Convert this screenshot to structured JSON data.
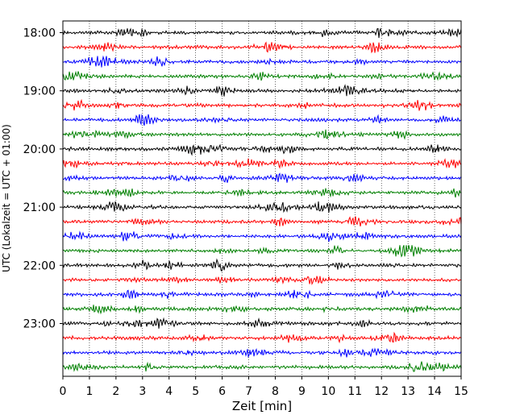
{
  "chart_data": {
    "type": "line",
    "subtype": "seismic-helicorder",
    "xlabel": "Zeit  [min]",
    "ylabel": "UTC (Lokalzeit = UTC + 01:00)",
    "xlim": [
      0,
      15
    ],
    "xticks": [
      0,
      1,
      2,
      3,
      4,
      5,
      6,
      7,
      8,
      9,
      10,
      11,
      12,
      13,
      14,
      15
    ],
    "xtick_labels": [
      "0",
      "1",
      "2",
      "3",
      "4",
      "5",
      "6",
      "7",
      "8",
      "9",
      "10",
      "11",
      "12",
      "13",
      "14",
      "15"
    ],
    "xgrid": true,
    "xgrid_style": "dotted",
    "trace_interval_min": 15,
    "first_trace": "18:00",
    "trace_count": 24,
    "trace_colors": [
      "#000000",
      "#ff0000",
      "#0000ff",
      "#008000"
    ],
    "yticks": [
      {
        "label": "18:00",
        "trace_index": 0
      },
      {
        "label": "19:00",
        "trace_index": 4
      },
      {
        "label": "20:00",
        "trace_index": 8
      },
      {
        "label": "21:00",
        "trace_index": 12
      },
      {
        "label": "22:00",
        "trace_index": 16
      },
      {
        "label": "23:00",
        "trace_index": 20
      }
    ]
  }
}
